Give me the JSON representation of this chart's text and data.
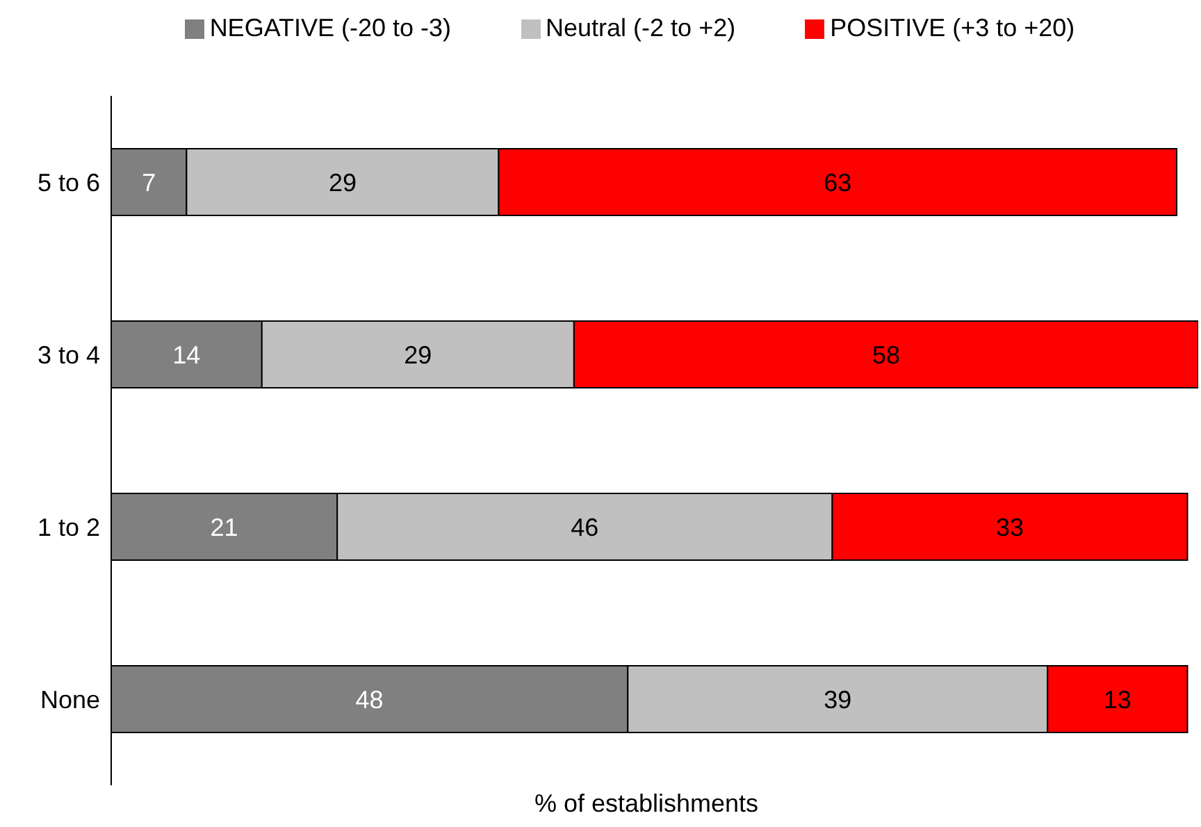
{
  "chart_data": {
    "type": "bar",
    "orientation": "horizontal",
    "stacked": true,
    "xlabel": "% of establishments",
    "categories": [
      "5 to 6",
      "3 to 4",
      "1 to 2",
      "None"
    ],
    "series": [
      {
        "name": "NEGATIVE (-20 to -3)",
        "color": "#808080",
        "values": [
          7,
          14,
          21,
          48
        ]
      },
      {
        "name": "Neutral (-2 to +2)",
        "color": "#c0c0c0",
        "values": [
          29,
          29,
          46,
          39
        ]
      },
      {
        "name": "POSITIVE (+3 to +20)",
        "color": "#ff0000",
        "values": [
          63,
          58,
          33,
          13
        ]
      }
    ],
    "data_labels": true,
    "legend": "top",
    "grid": false
  }
}
